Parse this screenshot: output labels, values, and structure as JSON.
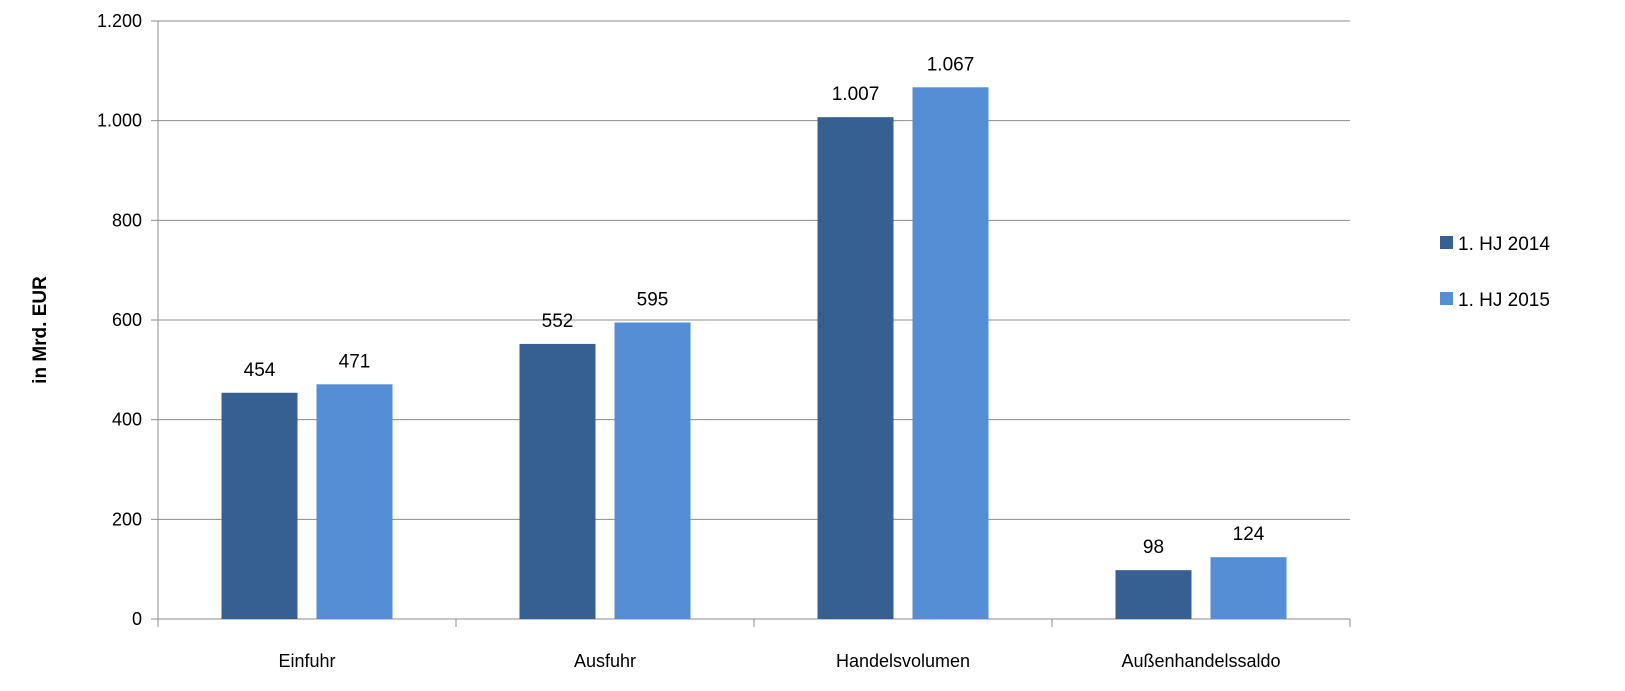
{
  "chart_data": {
    "type": "bar",
    "title": "",
    "xlabel": "",
    "ylabel": "in Mrd. EUR",
    "ylim": [
      0,
      1200
    ],
    "yticks": [
      0,
      200,
      400,
      600,
      800,
      1000,
      1200
    ],
    "ytick_labels": [
      "0",
      "200",
      "400",
      "600",
      "800",
      "1.000",
      "1.200"
    ],
    "grid": true,
    "legend_position": "right",
    "categories": [
      "Einfuhr",
      "Ausfuhr",
      "Handelsvolumen",
      "Außenhandelssaldo"
    ],
    "series": [
      {
        "name": "1. HJ 2014",
        "color": "#366092",
        "values": [
          454,
          552,
          1007,
          98
        ],
        "labels": [
          "454",
          "552",
          "1.007",
          "98"
        ]
      },
      {
        "name": "1. HJ 2015",
        "color": "#558ed5",
        "values": [
          471,
          595,
          1067,
          124
        ],
        "labels": [
          "471",
          "595",
          "1.067",
          "124"
        ]
      }
    ]
  }
}
